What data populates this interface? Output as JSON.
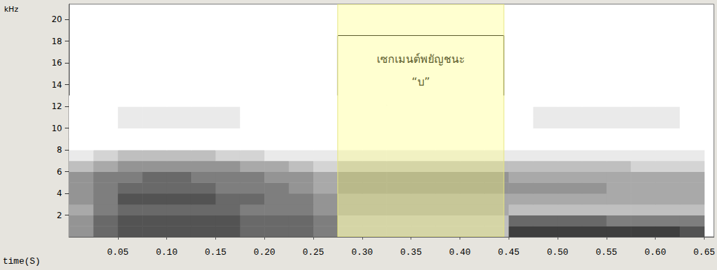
{
  "chart_data": {
    "type": "spectrogram",
    "x_label": "time(S)",
    "y_label": "kHz",
    "xlim": [
      0,
      0.66
    ],
    "xticks": [
      0.05,
      {
        "value": 0.1,
        "label": "0.10"
      },
      0.15,
      {
        "value": 0.2,
        "label": "0.20"
      },
      0.25,
      {
        "value": 0.3,
        "label": "0.30"
      },
      0.35,
      {
        "value": 0.4,
        "label": "0.40"
      },
      0.45,
      {
        "value": 0.5,
        "label": "0.50"
      },
      0.55,
      {
        "value": 0.6,
        "label": "0.60"
      },
      0.65
    ],
    "ylim": [
      0,
      21.4
    ],
    "yticks": [
      2,
      4,
      6,
      8,
      10,
      12,
      14,
      16,
      18,
      20
    ],
    "time_bins": [
      0,
      0.025,
      0.05,
      0.075,
      0.1,
      0.125,
      0.15,
      0.175,
      0.2,
      0.225,
      0.25,
      0.275,
      0.3,
      0.325,
      0.35,
      0.375,
      0.4,
      0.425,
      0.45,
      0.475,
      0.5,
      0.525,
      0.55,
      0.575,
      0.6,
      0.625,
      0.65
    ],
    "freq_bins": [
      0,
      1,
      2,
      3,
      4,
      5,
      6,
      7,
      8,
      9,
      10,
      11,
      12,
      13
    ],
    "zlim": [
      0,
      10
    ],
    "intensity": [
      [
        5,
        7,
        8,
        8,
        8,
        8,
        8,
        7,
        7,
        7,
        6,
        3,
        3,
        3,
        3,
        3,
        3,
        3,
        9,
        9,
        9,
        9,
        9,
        9,
        9,
        8
      ],
      [
        5,
        7,
        8,
        8,
        8,
        8,
        8,
        7,
        7,
        7,
        6,
        3,
        3,
        3,
        3,
        3,
        3,
        3,
        7,
        7,
        7,
        7,
        6,
        6,
        6,
        6
      ],
      [
        4,
        6,
        7,
        7,
        7,
        7,
        7,
        6,
        6,
        6,
        5,
        4,
        4,
        4,
        4,
        4,
        4,
        4,
        3,
        3,
        3,
        3,
        3,
        3,
        3,
        3
      ],
      [
        5,
        6,
        8,
        8,
        8,
        8,
        7,
        7,
        6,
        6,
        5,
        4,
        4,
        4,
        4,
        4,
        4,
        4,
        4,
        4,
        4,
        4,
        4,
        4,
        4,
        4
      ],
      [
        5,
        6,
        7,
        7,
        7,
        7,
        6,
        6,
        6,
        5,
        4,
        5,
        5,
        5,
        5,
        5,
        5,
        5,
        5,
        5,
        5,
        5,
        4,
        4,
        4,
        4
      ],
      [
        5,
        6,
        6,
        7,
        7,
        6,
        6,
        6,
        5,
        5,
        4,
        5,
        5,
        5,
        5,
        5,
        5,
        5,
        4,
        4,
        4,
        4,
        4,
        4,
        4,
        4
      ],
      [
        3,
        4,
        5,
        5,
        5,
        5,
        5,
        4,
        4,
        3,
        2,
        3,
        3,
        3,
        3,
        3,
        3,
        3,
        3,
        3,
        3,
        3,
        3,
        2,
        2,
        2
      ],
      [
        1,
        2,
        3,
        3,
        3,
        3,
        2,
        2,
        1,
        1,
        1,
        1,
        1,
        1,
        1,
        1,
        1,
        1,
        1,
        1,
        1,
        1,
        1,
        1,
        1,
        1
      ],
      [
        0,
        0,
        0,
        0,
        0,
        0,
        0,
        0,
        0,
        0,
        0,
        0,
        0,
        0,
        0,
        0,
        0,
        0,
        0,
        0,
        0,
        0,
        0,
        0,
        0,
        0
      ],
      [
        0,
        0,
        0,
        0,
        0,
        0,
        0,
        0,
        0,
        0,
        0,
        0,
        0,
        0,
        0,
        0,
        0,
        0,
        0,
        0,
        0,
        0,
        0,
        0,
        0,
        0
      ],
      [
        0,
        0,
        1,
        1,
        1,
        1,
        1,
        0,
        0,
        0,
        0,
        0,
        0,
        0,
        0,
        0,
        0,
        0,
        0,
        1,
        1,
        1,
        1,
        1,
        1,
        0
      ],
      [
        0,
        0,
        1,
        1,
        1,
        1,
        1,
        0,
        0,
        0,
        0,
        0,
        0,
        0,
        0,
        0,
        0,
        0,
        0,
        1,
        1,
        1,
        1,
        1,
        1,
        0
      ],
      [
        0,
        0,
        0,
        0,
        0,
        0,
        0,
        0,
        0,
        0,
        0,
        0,
        0,
        0,
        0,
        0,
        0,
        0,
        0,
        0,
        0,
        0,
        0,
        0,
        0,
        0
      ]
    ],
    "annotations": [
      {
        "text": [
          "เซกเมนต์พยัญชนะ",
          "“บ”"
        ],
        "x_range": [
          0.275,
          0.445
        ]
      }
    ]
  }
}
